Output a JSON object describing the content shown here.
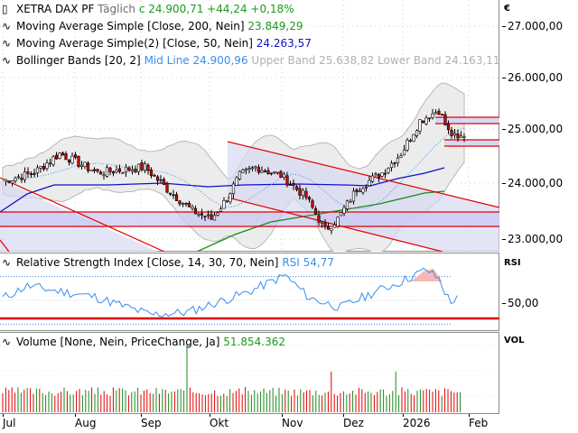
{
  "header": {
    "instrument": "XETRA DAX PF",
    "interval": "Täglich",
    "close_label": "c 24.900,71",
    "change": "+44,24",
    "change_pct": "+0,18%"
  },
  "indicators": {
    "ma200": {
      "name": "Moving Average Simple",
      "params": "[Close, 200, Nein]",
      "value": "23.849,29",
      "color": "#1a8a1a"
    },
    "ma50": {
      "name": "Moving Average Simple(2)",
      "params": "[Close, 50, Nein]",
      "value": "24.263,57",
      "color": "#1010cc"
    },
    "bollinger": {
      "name": "Bollinger Bands",
      "params": "[20, 2]",
      "mid": "Mid Line 24.900,96",
      "upper": "Upper Band 25.638,82",
      "lower": "Lower Band 24.163,11"
    },
    "rsi": {
      "name": "Relative Strength Index",
      "params": "[Close, 14, 30, 70, Nein]",
      "value": "RSI 54,77"
    },
    "volume": {
      "name": "Volume",
      "params": "[None, Nein, PriceChange, Ja]",
      "value": "51.854.362"
    }
  },
  "price_axis": {
    "unit": "€",
    "ticks": [
      "27.000,00",
      "26.000,00",
      "25.000,00",
      "24.000,00",
      "23.000,00"
    ]
  },
  "rsi_axis": {
    "label": "RSI",
    "ticks": [
      "50,00"
    ]
  },
  "vol_axis": {
    "label": "VOL"
  },
  "x_axis": {
    "labels": [
      "Jul",
      "Aug",
      "Sep",
      "Okt",
      "Nov",
      "Dez",
      "2026",
      "Feb"
    ]
  },
  "colors": {
    "up": "#1a8a1a",
    "down": "#e00000",
    "trendline": "#e00000",
    "band_fill": "#ececec",
    "channel_fill": "#d8d8f4",
    "rsi": "#3a8fe8",
    "ma50": "#1010cc",
    "ma200": "#1a8a1a"
  },
  "chart_data": [
    {
      "type": "line",
      "title": "XETRA DAX PF Täglich",
      "ylabel": "€",
      "ylim": [
        22800,
        27300
      ],
      "x": [
        "Jul",
        "Aug",
        "Sep",
        "Okt",
        "Nov",
        "Dez",
        "2026",
        "Feb"
      ],
      "series": [
        {
          "name": "Close (approx.)",
          "values": [
            24100,
            24300,
            23700,
            24600,
            23100,
            24200,
            25300,
            24900
          ]
        },
        {
          "name": "MA 200",
          "last": 23849.29
        },
        {
          "name": "MA 50",
          "last": 24263.57
        },
        {
          "name": "Bollinger Mid",
          "last": 24900.96
        },
        {
          "name": "Bollinger Upper",
          "last": 25638.82
        },
        {
          "name": "Bollinger Lower",
          "last": 24163.11
        }
      ],
      "horizontal_levels": [
        23490,
        23240,
        25180,
        24960,
        24760,
        24580
      ],
      "last_close": 24900.71,
      "change": 44.24,
      "change_pct": 0.18
    },
    {
      "type": "line",
      "title": "Relative Strength Index [Close, 14, 30, 70, Nein]",
      "ylim": [
        20,
        80
      ],
      "reference_lines": [
        30,
        50,
        70
      ],
      "last": 54.77
    },
    {
      "type": "bar",
      "title": "Volume [None, Nein, PriceChange, Ja]",
      "last": 51854362
    }
  ]
}
